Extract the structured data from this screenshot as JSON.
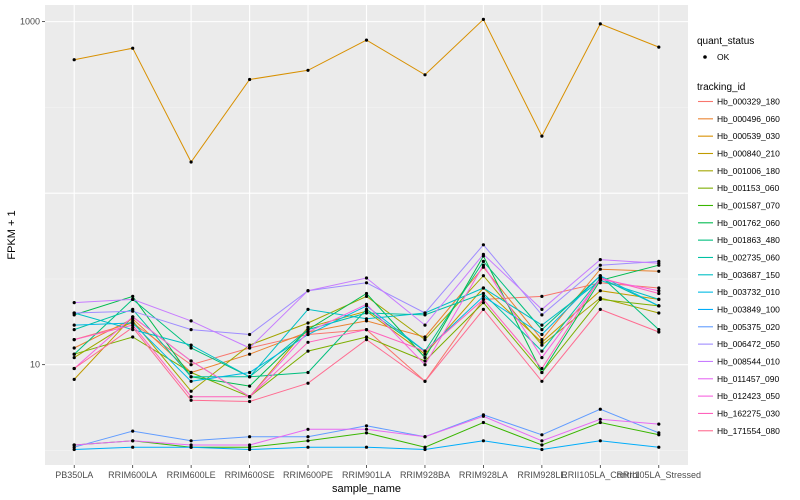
{
  "chart_data": {
    "type": "line",
    "xlabel": "sample_name",
    "ylabel": "FPKM + 1",
    "y_scale": "log10",
    "ylim": [
      2.6,
      1250
    ],
    "y_ticks": [
      {
        "value": 10,
        "label": "10"
      },
      {
        "value": 1000,
        "label": "1000"
      }
    ],
    "grid": true,
    "legend_position": "right",
    "categories": [
      "PB350LA",
      "RRIM600LA",
      "RRIM600LE",
      "RRIM600SE",
      "RRIM600PE",
      "RRIM901LA",
      "RRIM928BA",
      "RRIM928LA",
      "RRIM928LE",
      "RRII105LA_Control",
      "RRII105LA_Stressed"
    ],
    "legend_shape": {
      "title": "quant_status",
      "items": [
        "OK"
      ]
    },
    "legend_color_title": "tracking_id",
    "series": [
      {
        "name": "Hb_000329_180",
        "color": "#F8766D",
        "values": [
          14.0,
          17.5,
          10.0,
          12.5,
          15.0,
          16.0,
          8.0,
          24.0,
          25.0,
          30.0,
          28.0
        ]
      },
      {
        "name": "Hb_000496_060",
        "color": "#EA8331",
        "values": [
          12.5,
          18.5,
          9.0,
          11.5,
          15.5,
          18.0,
          14.5,
          37.0,
          14.0,
          36.0,
          35.0
        ]
      },
      {
        "name": "Hb_000539_030",
        "color": "#D89000",
        "values": [
          600,
          700,
          152,
          460,
          520,
          780,
          490,
          1030,
          215,
          970,
          710
        ]
      },
      {
        "name": "Hb_000840_210",
        "color": "#C09B00",
        "values": [
          8.2,
          19.0,
          10.5,
          6.5,
          16.5,
          20.5,
          11.5,
          28.0,
          13.5,
          27.0,
          24.0
        ]
      },
      {
        "name": "Hb_001006_180",
        "color": "#A3A500",
        "values": [
          11.0,
          18.0,
          7.0,
          13.0,
          17.5,
          25.0,
          14.0,
          33.0,
          13.0,
          24.5,
          20.0
        ]
      },
      {
        "name": "Hb_001153_060",
        "color": "#7CAE00",
        "values": [
          11.5,
          14.5,
          9.0,
          6.5,
          12.0,
          14.5,
          10.5,
          23.0,
          9.0,
          24.0,
          22.0
        ]
      },
      {
        "name": "Hb_001587_070",
        "color": "#39B600",
        "values": [
          3.4,
          3.6,
          3.3,
          3.3,
          3.6,
          4.0,
          3.3,
          4.6,
          3.4,
          4.6,
          3.9
        ]
      },
      {
        "name": "Hb_001762_060",
        "color": "#00BB4E",
        "values": [
          19.5,
          25.0,
          8.5,
          7.5,
          16.0,
          26.0,
          11.0,
          43.0,
          9.0,
          31.0,
          38.0
        ]
      },
      {
        "name": "Hb_001863_480",
        "color": "#00BF7D",
        "values": [
          11.5,
          24.0,
          12.5,
          8.5,
          9.0,
          21.0,
          12.0,
          40.0,
          16.0,
          33.0,
          16.0
        ]
      },
      {
        "name": "Hb_002735_060",
        "color": "#00C1A3",
        "values": [
          16.0,
          21.0,
          8.5,
          8.5,
          16.0,
          20.0,
          19.5,
          26.0,
          12.0,
          32.0,
          22.0
        ]
      },
      {
        "name": "Hb_003687_150",
        "color": "#00BFC4",
        "values": [
          20.0,
          16.0,
          13.0,
          8.5,
          21.0,
          18.5,
          20.0,
          28.0,
          17.0,
          31.0,
          24.0
        ]
      },
      {
        "name": "Hb_003732_010",
        "color": "#00B9E3",
        "values": [
          17.0,
          17.5,
          8.0,
          9.0,
          15.0,
          22.0,
          12.0,
          25.0,
          15.0,
          33.0,
          22.0
        ]
      },
      {
        "name": "Hb_003849_100",
        "color": "#00ADFA",
        "values": [
          3.2,
          3.3,
          3.3,
          3.2,
          3.3,
          3.3,
          3.2,
          3.6,
          3.2,
          3.6,
          3.3
        ]
      },
      {
        "name": "Hb_005375_020",
        "color": "#619CFF",
        "values": [
          3.3,
          4.1,
          3.6,
          3.8,
          3.8,
          4.4,
          3.8,
          5.1,
          3.9,
          5.5,
          4.0
        ]
      },
      {
        "name": "Hb_006472_050",
        "color": "#9F8CFF",
        "values": [
          20.0,
          20.5,
          16.0,
          15.0,
          27.0,
          30.0,
          20.0,
          50.0,
          19.5,
          38.0,
          40.0
        ]
      },
      {
        "name": "Hb_008544_010",
        "color": "#C77CFF",
        "values": [
          23.0,
          24.0,
          18.0,
          12.5,
          27.0,
          32.0,
          17.0,
          44.0,
          21.0,
          41.0,
          39.0
        ]
      },
      {
        "name": "Hb_011457_090",
        "color": "#E76BF3",
        "values": [
          3.4,
          3.6,
          3.4,
          3.4,
          4.2,
          4.2,
          3.8,
          5.0,
          3.6,
          4.8,
          4.5
        ]
      },
      {
        "name": "Hb_012423_050",
        "color": "#F763E0",
        "values": [
          9.5,
          19.0,
          10.5,
          6.5,
          15.5,
          22.5,
          10.0,
          38.0,
          11.0,
          31.5,
          27.0
        ]
      },
      {
        "name": "Hb_162275_030",
        "color": "#FF62BC",
        "values": [
          14.0,
          17.0,
          6.5,
          6.5,
          13.5,
          16.0,
          12.0,
          24.0,
          9.5,
          32.0,
          26.0
        ]
      },
      {
        "name": "Hb_171554_080",
        "color": "#FF6C91",
        "values": [
          9.5,
          16.5,
          6.2,
          6.1,
          7.8,
          14.0,
          8.0,
          21.0,
          8.0,
          21.0,
          15.5
        ]
      }
    ]
  }
}
